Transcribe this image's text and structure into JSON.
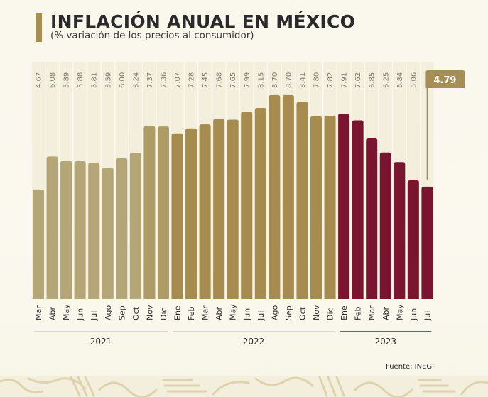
{
  "header": {
    "title": "INFLACIÓN ANUAL EN MÉXICO",
    "subtitle": "(% variación de los precios al consumidor)"
  },
  "footer": {
    "source": "Fuente: INEGI"
  },
  "colors": {
    "bar_2021_light": "#b4a676",
    "bar_2022_gold": "#a68d4f",
    "bar_2023_maroon": "#7a1530",
    "column_bg": "#f3efdc",
    "callout_bg": "#a68f55",
    "year_line_gold": "#d6cfa8",
    "year_line_maroon": "#7a1530",
    "text_dark": "#3a3a3a",
    "value_text": "#7a7a70"
  },
  "chart_data": {
    "type": "bar",
    "title": "INFLACIÓN ANUAL EN MÉXICO",
    "subtitle": "(% variación de los precios al consumidor)",
    "xlabel": "",
    "ylabel": "",
    "ylim": [
      0,
      8.7
    ],
    "grid": false,
    "categories": [
      "Mar",
      "Abr",
      "May",
      "Jun",
      "Jul",
      "Ago",
      "Sep",
      "Oct",
      "Nov",
      "Dic",
      "Ene",
      "Feb",
      "Mar",
      "Abr",
      "May",
      "Jun",
      "Jul",
      "Ago",
      "Sep",
      "Oct",
      "Nov",
      "Dic",
      "Ene",
      "Feb",
      "Mar",
      "Abr",
      "May",
      "Jun",
      "Jul"
    ],
    "years": [
      "2021",
      "2021",
      "2021",
      "2021",
      "2021",
      "2021",
      "2021",
      "2021",
      "2021",
      "2021",
      "2022",
      "2022",
      "2022",
      "2022",
      "2022",
      "2022",
      "2022",
      "2022",
      "2022",
      "2022",
      "2022",
      "2022",
      "2023",
      "2023",
      "2023",
      "2023",
      "2023",
      "2023",
      "2023"
    ],
    "values": [
      4.67,
      6.08,
      5.89,
      5.88,
      5.81,
      5.59,
      6.0,
      6.24,
      7.37,
      7.36,
      7.07,
      7.28,
      7.45,
      7.68,
      7.65,
      7.99,
      8.15,
      8.7,
      8.7,
      8.41,
      7.8,
      7.82,
      7.91,
      7.62,
      6.85,
      6.25,
      5.84,
      5.06,
      4.79
    ],
    "value_labels": [
      "4.67",
      "6.08",
      "5.89",
      "5.88",
      "5.81",
      "5.59",
      "6.00",
      "6.24",
      "7.37",
      "7.36",
      "7.07",
      "7.28",
      "7.45",
      "7.68",
      "7.65",
      "7.99",
      "8.15",
      "8.70",
      "8.70",
      "8.41",
      "7.80",
      "7.82",
      "7.91",
      "7.62",
      "6.85",
      "6.25",
      "5.84",
      "5.06",
      "4.79"
    ],
    "year_groups": [
      {
        "label": "2021",
        "count": 10
      },
      {
        "label": "2022",
        "count": 12
      },
      {
        "label": "2023",
        "count": 7
      }
    ],
    "highlight": {
      "label": "4.79",
      "index": 28
    },
    "source": "Fuente: INEGI"
  }
}
